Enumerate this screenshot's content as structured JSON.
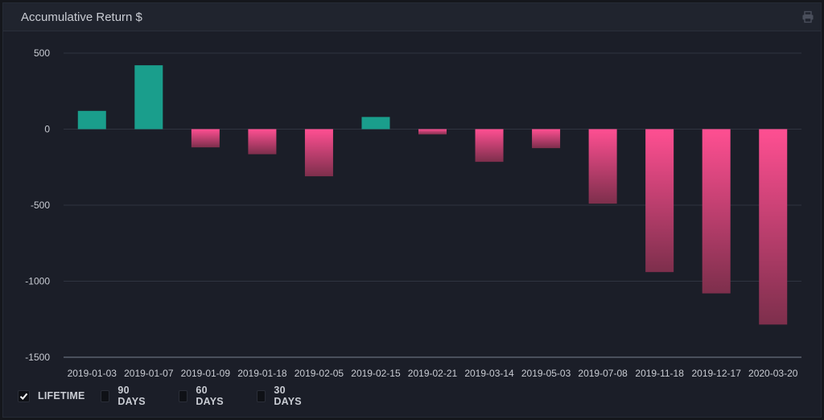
{
  "panel": {
    "title": "Accumulative Return $"
  },
  "icons": {
    "print": "print-icon"
  },
  "colors": {
    "positive": "#1a9e8c",
    "negative_top": "#ff4f92",
    "negative_bottom": "#7d2f4c",
    "grid": "#2f3440",
    "axis_text": "#c9ccd3",
    "accent": "#20d8c6"
  },
  "chart_data": {
    "type": "bar",
    "categories": [
      "2019-01-03",
      "2019-01-07",
      "2019-01-09",
      "2019-01-18",
      "2019-02-05",
      "2019-02-15",
      "2019-02-21",
      "2019-03-14",
      "2019-05-03",
      "2019-07-08",
      "2019-11-18",
      "2019-12-17",
      "2020-03-20"
    ],
    "values": [
      120,
      420,
      -120,
      -165,
      -310,
      80,
      -35,
      -215,
      -125,
      -490,
      -940,
      -1080,
      -1285
    ],
    "ylim": [
      -1500,
      500
    ],
    "yticks": [
      500,
      0,
      -500,
      -1000,
      -1500
    ],
    "grid": true
  },
  "legend": {
    "items": [
      {
        "label": "LIFETIME",
        "checked": true
      },
      {
        "label": "90 DAYS",
        "checked": false
      },
      {
        "label": "60 DAYS",
        "checked": false
      },
      {
        "label": "30 DAYS",
        "checked": false
      }
    ]
  }
}
